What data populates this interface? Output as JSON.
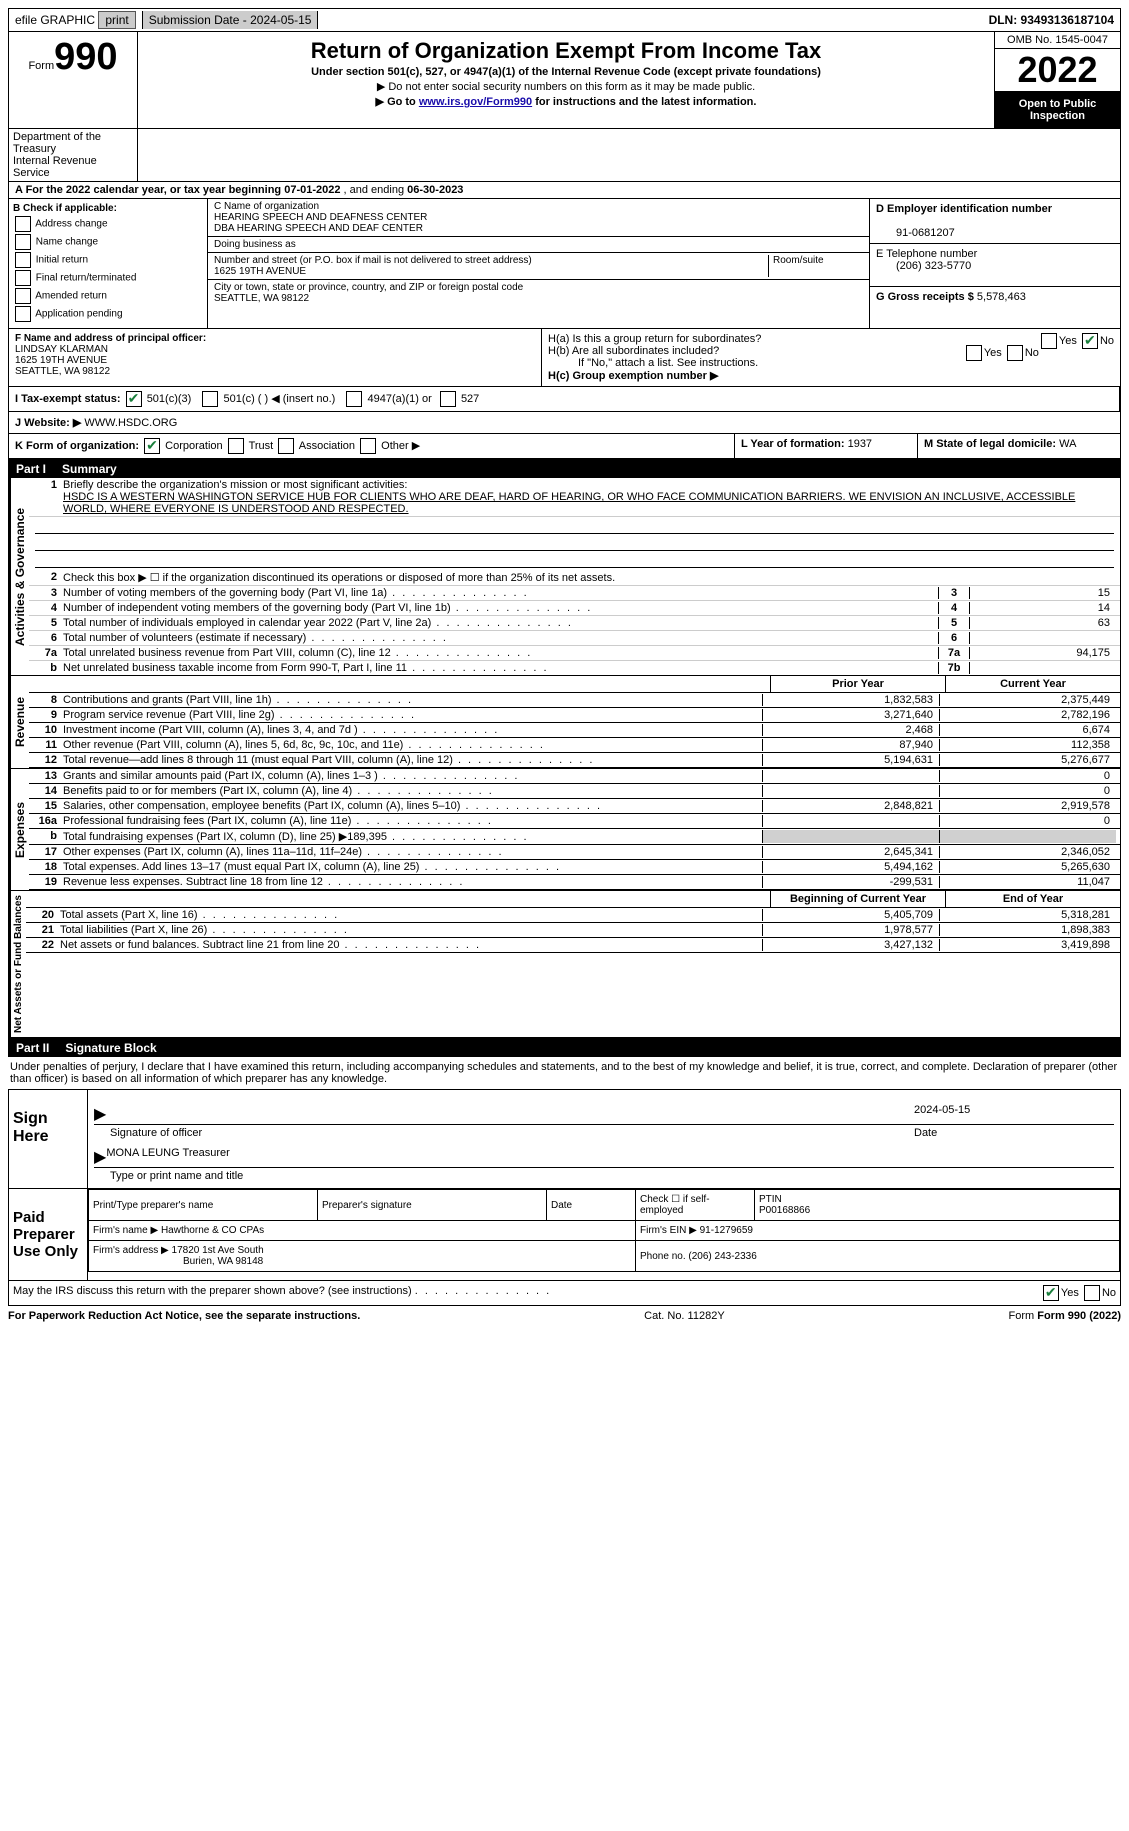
{
  "top_bar": {
    "efile_label": "efile GRAPHIC",
    "print_btn": "print",
    "submission_label": "Submission Date - 2024-05-15",
    "dln_label": "DLN: 93493136187104"
  },
  "header": {
    "form_word": "Form",
    "form_number": "990",
    "title": "Return of Organization Exempt From Income Tax",
    "under_section": "Under section 501(c), 527, or 4947(a)(1) of the Internal Revenue Code (except private foundations)",
    "no_ssn": "▶ Do not enter social security numbers on this form as it may be made public.",
    "goto_prefix": "▶ Go to ",
    "goto_link": "www.irs.gov/Form990",
    "goto_suffix": " for instructions and the latest information.",
    "omb": "OMB No. 1545-0047",
    "tax_year": "2022",
    "open_public": "Open to Public Inspection",
    "dept": "Department of the Treasury",
    "irs": "Internal Revenue Service"
  },
  "row_a": {
    "prefix": "A For the 2022 calendar year, or tax year beginning ",
    "begin": "07-01-2022",
    "mid": " , and ending ",
    "end": "06-30-2023"
  },
  "section_b": {
    "label": "B Check if applicable:",
    "addr_change": "Address change",
    "name_change": "Name change",
    "initial": "Initial return",
    "final": "Final return/terminated",
    "amended": "Amended return",
    "app_pending": "Application pending"
  },
  "section_c": {
    "name_label": "C Name of organization",
    "name1": "HEARING SPEECH AND DEAFNESS CENTER",
    "name2": "DBA HEARING SPEECH AND DEAF CENTER",
    "dba_label": "Doing business as",
    "street_label": "Number and street (or P.O. box if mail is not delivered to street address)",
    "room_label": "Room/suite",
    "street": "1625 19TH AVENUE",
    "city_label": "City or town, state or province, country, and ZIP or foreign postal code",
    "city": "SEATTLE, WA  98122"
  },
  "section_d": {
    "ein_label": "D Employer identification number",
    "ein": "91-0681207",
    "phone_label": "E Telephone number",
    "phone": "(206) 323-5770",
    "gross_label": "G Gross receipts $",
    "gross": "5,578,463"
  },
  "section_f": {
    "label": "F  Name and address of principal officer:",
    "name": "LINDSAY KLARMAN",
    "street": "1625 19TH AVENUE",
    "city": "SEATTLE, WA  98122"
  },
  "section_h": {
    "ha_label": "H(a)  Is this a group return for subordinates?",
    "hb_label": "H(b)  Are all subordinates included?",
    "hb_note": "If \"No,\" attach a list. See instructions.",
    "hc_label": "H(c)  Group exemption number ▶",
    "yes": "Yes",
    "no": "No"
  },
  "row_i": {
    "label": "I  Tax-exempt status:",
    "c3": "501(c)(3)",
    "c_blank": "501(c) (   ) ◀ (insert no.)",
    "a1": "4947(a)(1) or",
    "s527": "527"
  },
  "row_j": {
    "label": "J  Website: ▶",
    "value": "WWW.HSDC.ORG"
  },
  "row_k": {
    "label": "K Form of organization:",
    "corp": "Corporation",
    "trust": "Trust",
    "assoc": "Association",
    "other": "Other ▶"
  },
  "row_l": {
    "label": "L Year of formation:",
    "value": "1937"
  },
  "row_m": {
    "label": "M State of legal domicile:",
    "value": "WA"
  },
  "part1": {
    "num": "Part I",
    "title": "Summary"
  },
  "summary": {
    "vert_ag": "Activities & Governance",
    "line1_label": "Briefly describe the organization's mission or most significant activities:",
    "mission": "HSDC IS A WESTERN WASHINGTON SERVICE HUB FOR CLIENTS WHO ARE DEAF, HARD OF HEARING, OR WHO FACE COMMUNICATION BARRIERS. WE ENVISION AN INCLUSIVE, ACCESSIBLE WORLD, WHERE EVERYONE IS UNDERSTOOD AND RESPECTED.",
    "line2": "Check this box ▶ ☐ if the organization discontinued its operations or disposed of more than 25% of its net assets.",
    "lines": [
      {
        "n": "3",
        "t": "Number of voting members of the governing body (Part VI, line 1a)",
        "box": "3",
        "v": "15"
      },
      {
        "n": "4",
        "t": "Number of independent voting members of the governing body (Part VI, line 1b)",
        "box": "4",
        "v": "14"
      },
      {
        "n": "5",
        "t": "Total number of individuals employed in calendar year 2022 (Part V, line 2a)",
        "box": "5",
        "v": "63"
      },
      {
        "n": "6",
        "t": "Total number of volunteers (estimate if necessary)",
        "box": "6",
        "v": ""
      },
      {
        "n": "7a",
        "t": "Total unrelated business revenue from Part VIII, column (C), line 12",
        "box": "7a",
        "v": "94,175"
      },
      {
        "n": "b",
        "t": "Net unrelated business taxable income from Form 990-T, Part I, line 11",
        "box": "7b",
        "v": ""
      }
    ]
  },
  "revenue": {
    "vert": "Revenue",
    "prior_h": "Prior Year",
    "curr_h": "Current Year",
    "rows": [
      {
        "n": "8",
        "t": "Contributions and grants (Part VIII, line 1h)",
        "p": "1,832,583",
        "c": "2,375,449"
      },
      {
        "n": "9",
        "t": "Program service revenue (Part VIII, line 2g)",
        "p": "3,271,640",
        "c": "2,782,196"
      },
      {
        "n": "10",
        "t": "Investment income (Part VIII, column (A), lines 3, 4, and 7d )",
        "p": "2,468",
        "c": "6,674"
      },
      {
        "n": "11",
        "t": "Other revenue (Part VIII, column (A), lines 5, 6d, 8c, 9c, 10c, and 11e)",
        "p": "87,940",
        "c": "112,358"
      },
      {
        "n": "12",
        "t": "Total revenue—add lines 8 through 11 (must equal Part VIII, column (A), line 12)",
        "p": "5,194,631",
        "c": "5,276,677"
      }
    ]
  },
  "expenses": {
    "vert": "Expenses",
    "rows": [
      {
        "n": "13",
        "t": "Grants and similar amounts paid (Part IX, column (A), lines 1–3 )",
        "p": "",
        "c": "0"
      },
      {
        "n": "14",
        "t": "Benefits paid to or for members (Part IX, column (A), line 4)",
        "p": "",
        "c": "0"
      },
      {
        "n": "15",
        "t": "Salaries, other compensation, employee benefits (Part IX, column (A), lines 5–10)",
        "p": "2,848,821",
        "c": "2,919,578"
      },
      {
        "n": "16a",
        "t": "Professional fundraising fees (Part IX, column (A), line 11e)",
        "p": "",
        "c": "0"
      },
      {
        "n": "b",
        "t": "Total fundraising expenses (Part IX, column (D), line 25) ▶189,395",
        "p": "SHADE",
        "c": "SHADE"
      },
      {
        "n": "17",
        "t": "Other expenses (Part IX, column (A), lines 11a–11d, 11f–24e)",
        "p": "2,645,341",
        "c": "2,346,052"
      },
      {
        "n": "18",
        "t": "Total expenses. Add lines 13–17 (must equal Part IX, column (A), line 25)",
        "p": "5,494,162",
        "c": "5,265,630"
      },
      {
        "n": "19",
        "t": "Revenue less expenses. Subtract line 18 from line 12",
        "p": "-299,531",
        "c": "11,047"
      }
    ]
  },
  "netassets": {
    "vert": "Net Assets or Fund Balances",
    "begin_h": "Beginning of Current Year",
    "end_h": "End of Year",
    "rows": [
      {
        "n": "20",
        "t": "Total assets (Part X, line 16)",
        "p": "5,405,709",
        "c": "5,318,281"
      },
      {
        "n": "21",
        "t": "Total liabilities (Part X, line 26)",
        "p": "1,978,577",
        "c": "1,898,383"
      },
      {
        "n": "22",
        "t": "Net assets or fund balances. Subtract line 21 from line 20",
        "p": "3,427,132",
        "c": "3,419,898"
      }
    ]
  },
  "part2": {
    "num": "Part II",
    "title": "Signature Block"
  },
  "sig": {
    "penalty": "Under penalties of perjury, I declare that I have examined this return, including accompanying schedules and statements, and to the best of my knowledge and belief, it is true, correct, and complete. Declaration of preparer (other than officer) is based on all information of which preparer has any knowledge.",
    "sign_here": "Sign Here",
    "sig_officer": "Signature of officer",
    "date_label": "Date",
    "date": "2024-05-15",
    "officer_name": "MONA LEUNG  Treasurer",
    "type_name": "Type or print name and title",
    "paid_prep": "Paid Preparer Use Only",
    "prep_name_h": "Print/Type preparer's name",
    "prep_sig_h": "Preparer's signature",
    "prep_date_h": "Date",
    "check_self": "Check ☐ if self-employed",
    "ptin_h": "PTIN",
    "ptin": "P00168866",
    "firm_name_h": "Firm's name    ▶",
    "firm_name": "Hawthorne & CO CPAs",
    "firm_ein_h": "Firm's EIN ▶",
    "firm_ein": "91-1279659",
    "firm_addr_h": "Firm's address ▶",
    "firm_addr1": "17820 1st Ave South",
    "firm_addr2": "Burien, WA  98148",
    "firm_phone_h": "Phone no.",
    "firm_phone": "(206) 243-2336",
    "discuss": "May the IRS discuss this return with the preparer shown above? (see instructions)",
    "yes": "Yes",
    "no": "No"
  },
  "footer": {
    "pra": "For Paperwork Reduction Act Notice, see the separate instructions.",
    "cat": "Cat. No. 11282Y",
    "form": "Form 990 (2022)"
  }
}
